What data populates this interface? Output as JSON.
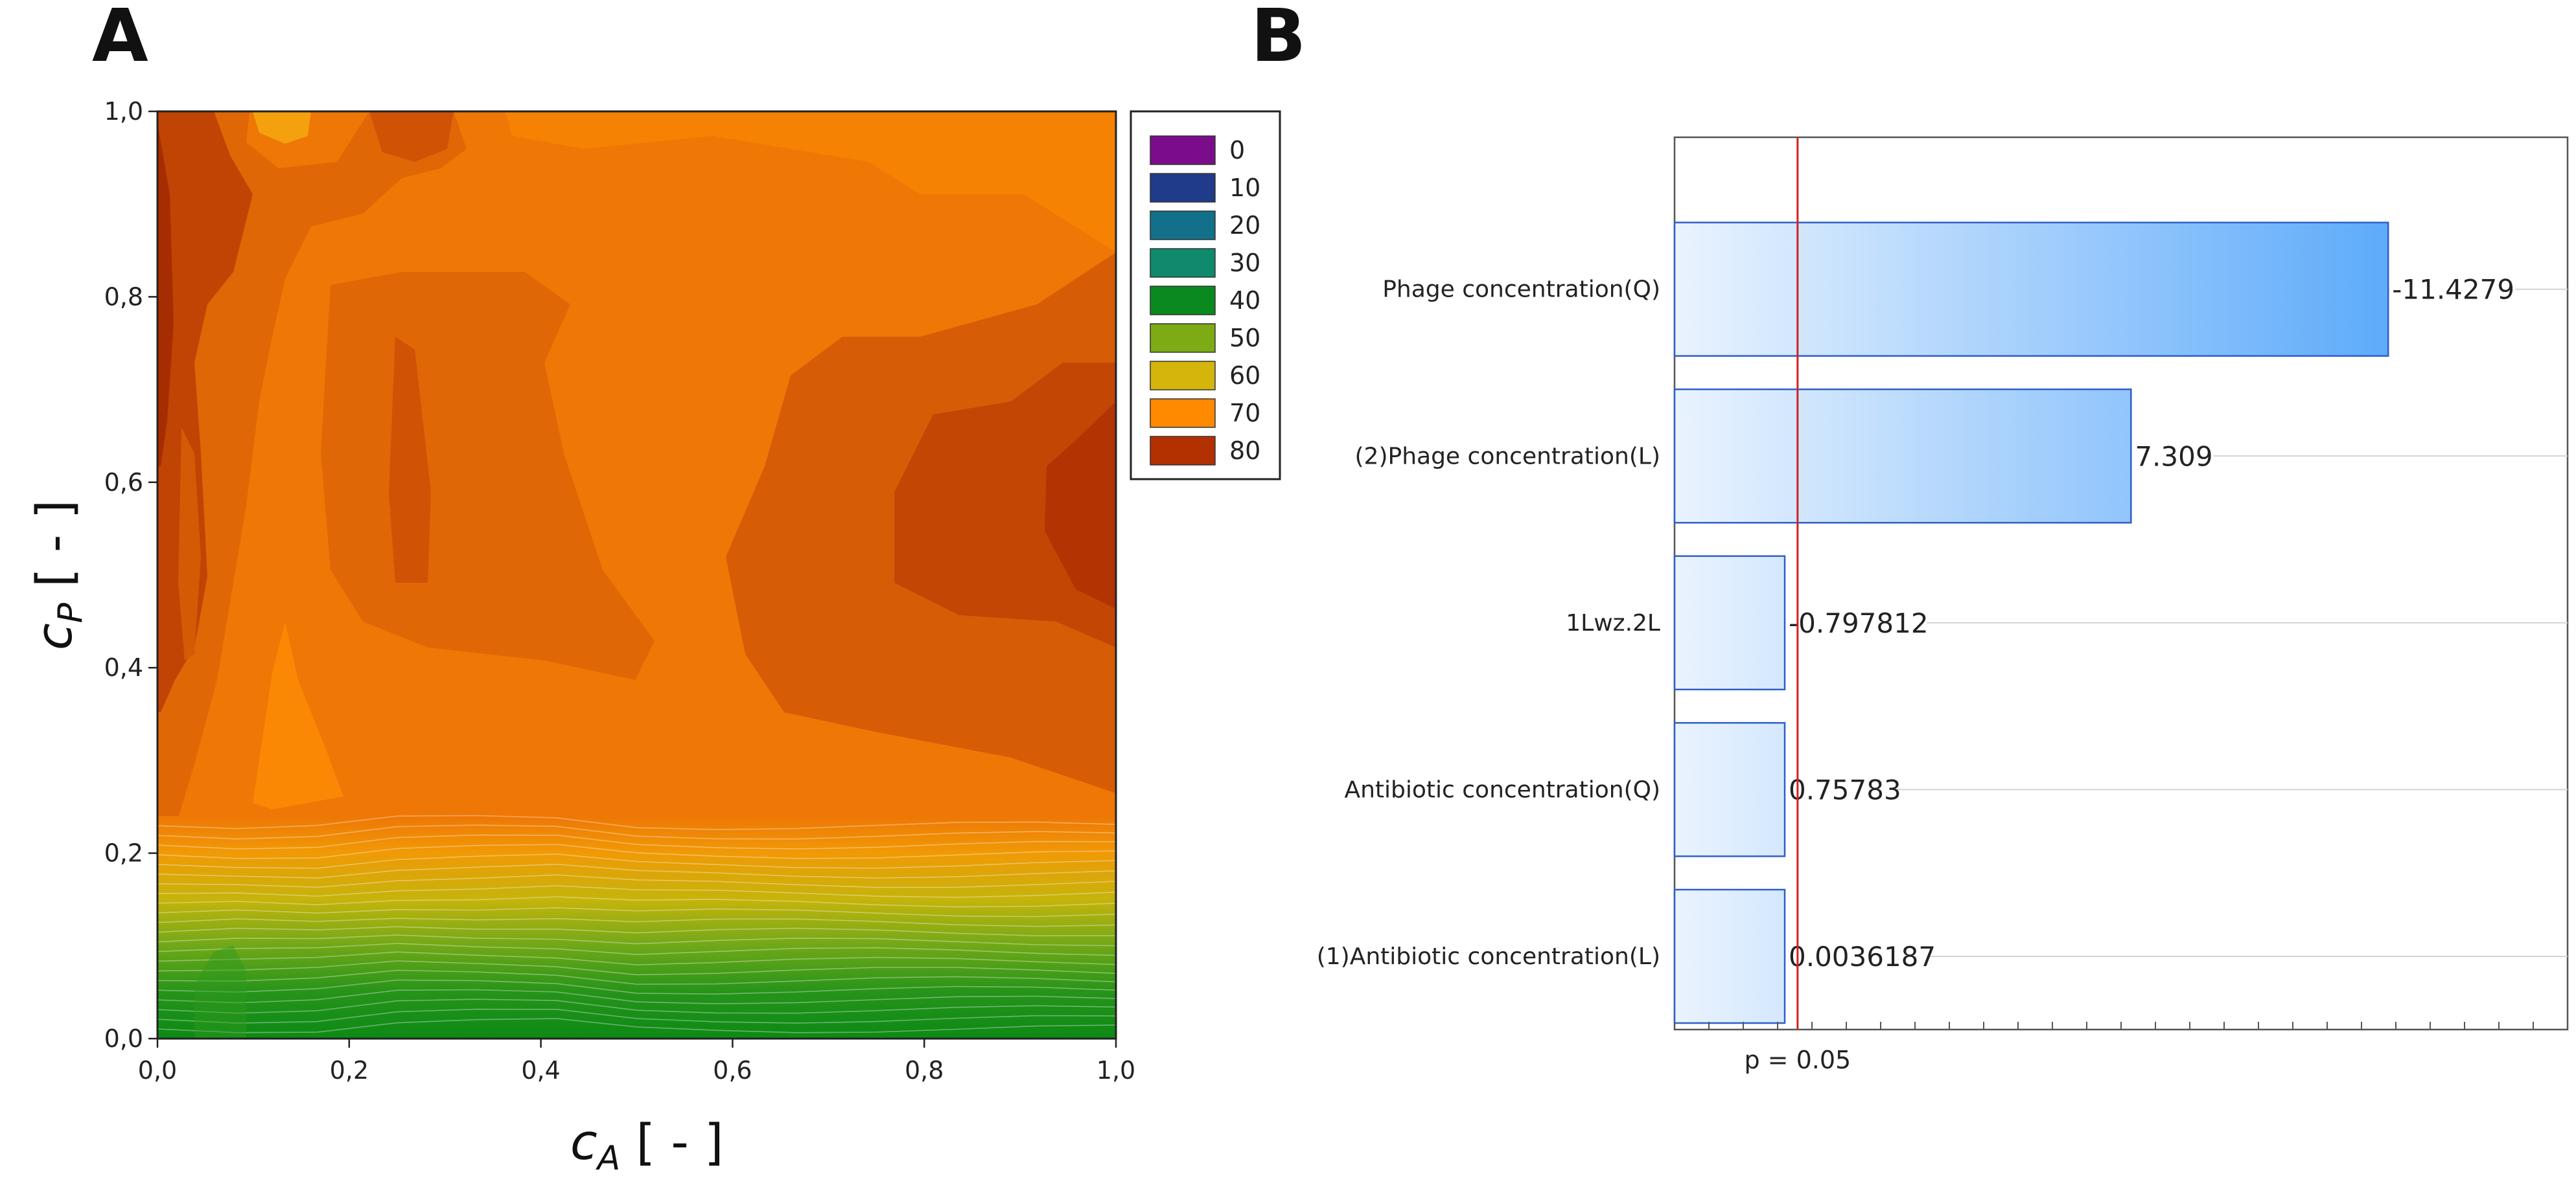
{
  "panels": {
    "a_label": "A",
    "b_label": "B"
  },
  "chart_data": [
    {
      "type": "contour",
      "panel": "A",
      "xlabel": {
        "main": "c",
        "sub": "A",
        "unit": " [ - ]"
      },
      "ylabel": {
        "main": "c",
        "sub": "P",
        "unit": " [ - ]"
      },
      "xlim": [
        0,
        1
      ],
      "ylim": [
        0,
        1
      ],
      "x_ticks": [
        0,
        0.2,
        0.4,
        0.6,
        0.8,
        1.0
      ],
      "x_tick_labels": [
        "0,0",
        "0,2",
        "0,4",
        "0,6",
        "0,8",
        "1,0"
      ],
      "y_ticks": [
        0,
        0.2,
        0.4,
        0.6,
        0.8,
        1.0
      ],
      "y_tick_labels": [
        "0,0",
        "0,2",
        "0,4",
        "0,6",
        "0,8",
        "1,0"
      ],
      "legend": {
        "position": "right",
        "entries": [
          {
            "label": "0",
            "color": "#7b0d8c"
          },
          {
            "label": "10",
            "color": "#1f3b8a"
          },
          {
            "label": "20",
            "color": "#12708a"
          },
          {
            "label": "30",
            "color": "#0f8a6c"
          },
          {
            "label": "40",
            "color": "#0a8a1e"
          },
          {
            "label": "50",
            "color": "#7dab14"
          },
          {
            "label": "60",
            "color": "#d5b40b"
          },
          {
            "label": "70",
            "color": "#ff8a00"
          },
          {
            "label": "80",
            "color": "#b33000"
          }
        ]
      },
      "regions": [
        {
          "level": 70,
          "description": "background field",
          "color": "#ee7706"
        },
        {
          "level": 75,
          "description": "upper-right band",
          "color": "#f68203"
        },
        {
          "level": 75,
          "description": "central high region",
          "color": "#e06706"
        },
        {
          "level": 80,
          "description": "right pocket",
          "color": "#cf5205"
        },
        {
          "level": 85,
          "description": "right core",
          "color": "#b43502"
        },
        {
          "level": 80,
          "description": "left vertical strip",
          "color": "#c44a04"
        }
      ],
      "gradient_band": {
        "cp_range": [
          0,
          0.24
        ],
        "stops": [
          {
            "cp": 0.0,
            "value": 36,
            "color": "#0c8a16"
          },
          {
            "cp": 0.05,
            "value": 40,
            "color": "#26931a"
          },
          {
            "cp": 0.1,
            "value": 48,
            "color": "#6fa818"
          },
          {
            "cp": 0.15,
            "value": 58,
            "color": "#c5b40b"
          },
          {
            "cp": 0.2,
            "value": 66,
            "color": "#f09a06"
          },
          {
            "cp": 0.24,
            "value": 70,
            "color": "#ee7706"
          }
        ]
      }
    },
    {
      "type": "bar",
      "panel": "B",
      "orientation": "horizontal",
      "title": "",
      "categories": [
        "Phage concentration(Q)",
        "(2)Phage concentration(L)",
        "1Lwz.2L",
        "Antibiotic concentration(Q)",
        "(1)Antibiotic concentration(L)"
      ],
      "values": [
        -11.4279,
        7.309,
        -0.797812,
        0.75783,
        0.0036187
      ],
      "value_labels": [
        "-11.4279",
        "7.309",
        "-0.797812",
        "0.75783",
        "0.0036187"
      ],
      "bar_lengths": [
        11.4279,
        7.309,
        0.797812,
        0.75783,
        0.0036187
      ],
      "xlim": [
        0,
        14.3
      ],
      "threshold": {
        "value": 1.97,
        "label": "p = 0.05",
        "color": "#d42020"
      },
      "bar_color_light": "#eaf3fe",
      "bar_color_dark": "#5aa9fa",
      "bar_edge_color": "#2f5fc7",
      "gridlines": true
    }
  ]
}
